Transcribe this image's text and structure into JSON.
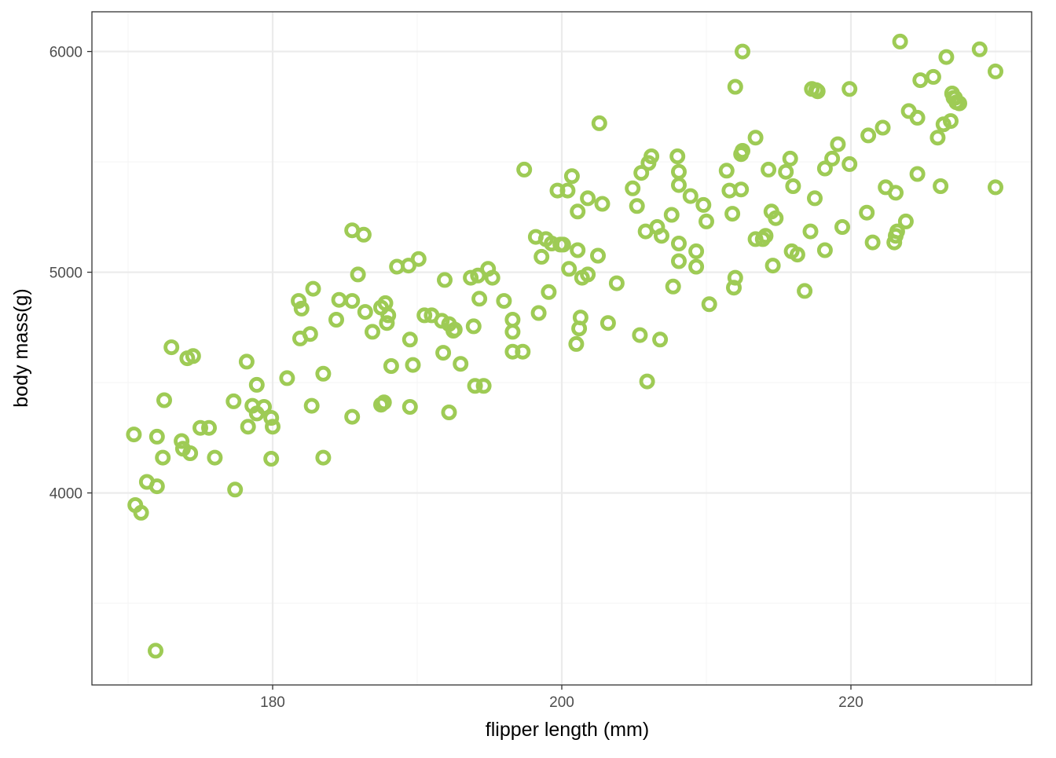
{
  "chart_data": {
    "type": "scatter",
    "title": "",
    "xlabel": "flipper length (mm)",
    "ylabel": "body mass(g)",
    "xlim": [
      167.5,
      232.5
    ],
    "ylim": [
      3130,
      6180
    ],
    "x_ticks": [
      180,
      200,
      220
    ],
    "y_ticks": [
      4000,
      5000,
      6000
    ],
    "x_minor_gridlines": [
      170,
      190,
      210,
      230
    ],
    "y_minor_gridlines": [
      3500,
      4500,
      5500
    ],
    "grid": true,
    "legend": "none",
    "point_style": "hollow-circle",
    "colors": {
      "point": "#9ECB55",
      "panel_border": "#333333",
      "grid_major": "#EBEBEB",
      "grid_minor": "#F5F5F5",
      "background": "#FFFFFF"
    },
    "series": [
      {
        "points": [
          [
            170.4,
            4265
          ],
          [
            170.5,
            3945
          ],
          [
            170.9,
            3910
          ],
          [
            171.3,
            4050
          ],
          [
            172.0,
            4030
          ],
          [
            172.0,
            4255
          ],
          [
            171.9,
            3285
          ],
          [
            172.5,
            4420
          ],
          [
            172.4,
            4160
          ],
          [
            173.0,
            4660
          ],
          [
            173.7,
            4235
          ],
          [
            173.8,
            4200
          ],
          [
            174.1,
            4610
          ],
          [
            174.5,
            4620
          ],
          [
            174.3,
            4180
          ],
          [
            175.0,
            4295
          ],
          [
            175.6,
            4295
          ],
          [
            176.0,
            4160
          ],
          [
            177.3,
            4415
          ],
          [
            177.4,
            4015
          ],
          [
            178.2,
            4595
          ],
          [
            178.3,
            4300
          ],
          [
            178.6,
            4395
          ],
          [
            178.9,
            4490
          ],
          [
            178.9,
            4360
          ],
          [
            179.4,
            4390
          ],
          [
            179.9,
            4340
          ],
          [
            180.0,
            4300
          ],
          [
            179.9,
            4155
          ],
          [
            181.0,
            4520
          ],
          [
            181.8,
            4870
          ],
          [
            181.9,
            4700
          ],
          [
            182.0,
            4835
          ],
          [
            182.6,
            4720
          ],
          [
            182.7,
            4395
          ],
          [
            182.8,
            4925
          ],
          [
            183.5,
            4540
          ],
          [
            183.5,
            4160
          ],
          [
            184.4,
            4785
          ],
          [
            184.6,
            4875
          ],
          [
            185.5,
            5190
          ],
          [
            185.5,
            4345
          ],
          [
            185.5,
            4870
          ],
          [
            185.9,
            4990
          ],
          [
            186.3,
            5170
          ],
          [
            186.4,
            4820
          ],
          [
            186.9,
            4730
          ],
          [
            187.5,
            4400
          ],
          [
            187.5,
            4840
          ],
          [
            187.7,
            4410
          ],
          [
            187.8,
            4860
          ],
          [
            187.9,
            4770
          ],
          [
            188.0,
            4805
          ],
          [
            188.2,
            4575
          ],
          [
            188.6,
            5025
          ],
          [
            189.4,
            5030
          ],
          [
            189.5,
            4695
          ],
          [
            189.5,
            4390
          ],
          [
            189.7,
            4580
          ],
          [
            190.1,
            5060
          ],
          [
            190.5,
            4805
          ],
          [
            191.0,
            4805
          ],
          [
            191.7,
            4780
          ],
          [
            191.8,
            4635
          ],
          [
            191.9,
            4965
          ],
          [
            192.2,
            4765
          ],
          [
            192.2,
            4365
          ],
          [
            192.5,
            4735
          ],
          [
            192.6,
            4740
          ],
          [
            193.0,
            4585
          ],
          [
            193.7,
            4975
          ],
          [
            193.9,
            4755
          ],
          [
            194.0,
            4485
          ],
          [
            194.2,
            4985
          ],
          [
            194.3,
            4880
          ],
          [
            194.6,
            4485
          ],
          [
            194.9,
            5015
          ],
          [
            195.2,
            4975
          ],
          [
            196.0,
            4870
          ],
          [
            196.6,
            4785
          ],
          [
            196.6,
            4730
          ],
          [
            196.6,
            4640
          ],
          [
            197.3,
            4640
          ],
          [
            197.4,
            5465
          ],
          [
            198.2,
            5160
          ],
          [
            198.4,
            4815
          ],
          [
            198.6,
            5070
          ],
          [
            198.9,
            5150
          ],
          [
            199.1,
            4910
          ],
          [
            199.3,
            5130
          ],
          [
            199.7,
            5370
          ],
          [
            199.9,
            5125
          ],
          [
            200.1,
            5125
          ],
          [
            200.4,
            5370
          ],
          [
            200.5,
            5015
          ],
          [
            200.7,
            5435
          ],
          [
            201.0,
            4675
          ],
          [
            201.1,
            5100
          ],
          [
            201.1,
            5275
          ],
          [
            201.2,
            4745
          ],
          [
            201.3,
            4795
          ],
          [
            201.4,
            4975
          ],
          [
            201.8,
            5335
          ],
          [
            201.8,
            4990
          ],
          [
            202.5,
            5075
          ],
          [
            202.6,
            5675
          ],
          [
            202.8,
            5310
          ],
          [
            203.2,
            4770
          ],
          [
            203.8,
            4950
          ],
          [
            204.9,
            5380
          ],
          [
            205.2,
            5300
          ],
          [
            205.4,
            4715
          ],
          [
            205.5,
            5450
          ],
          [
            205.8,
            5185
          ],
          [
            205.9,
            4505
          ],
          [
            206.0,
            5495
          ],
          [
            206.2,
            5525
          ],
          [
            206.6,
            5205
          ],
          [
            206.8,
            4695
          ],
          [
            206.9,
            5165
          ],
          [
            207.6,
            5260
          ],
          [
            207.7,
            4935
          ],
          [
            208.0,
            5525
          ],
          [
            208.1,
            5395
          ],
          [
            208.1,
            5455
          ],
          [
            208.1,
            5130
          ],
          [
            208.1,
            5050
          ],
          [
            208.9,
            5345
          ],
          [
            209.3,
            5095
          ],
          [
            209.3,
            5025
          ],
          [
            209.8,
            5305
          ],
          [
            210.0,
            5230
          ],
          [
            210.2,
            4855
          ],
          [
            211.4,
            5460
          ],
          [
            211.6,
            5370
          ],
          [
            211.8,
            5265
          ],
          [
            211.9,
            4930
          ],
          [
            212.0,
            4975
          ],
          [
            212.0,
            5840
          ],
          [
            212.4,
            5375
          ],
          [
            212.4,
            5535
          ],
          [
            212.5,
            5550
          ],
          [
            212.5,
            6000
          ],
          [
            213.4,
            5150
          ],
          [
            213.4,
            5610
          ],
          [
            213.9,
            5150
          ],
          [
            214.1,
            5165
          ],
          [
            214.3,
            5465
          ],
          [
            214.5,
            5275
          ],
          [
            214.6,
            5030
          ],
          [
            214.8,
            5245
          ],
          [
            215.5,
            5455
          ],
          [
            215.8,
            5515
          ],
          [
            215.9,
            5095
          ],
          [
            216.0,
            5390
          ],
          [
            216.3,
            5080
          ],
          [
            216.8,
            4915
          ],
          [
            217.2,
            5185
          ],
          [
            217.3,
            5830
          ],
          [
            217.6,
            5825
          ],
          [
            217.7,
            5820
          ],
          [
            217.5,
            5335
          ],
          [
            218.2,
            5470
          ],
          [
            218.2,
            5100
          ],
          [
            218.7,
            5515
          ],
          [
            219.1,
            5580
          ],
          [
            219.4,
            5205
          ],
          [
            219.9,
            5490
          ],
          [
            219.9,
            5830
          ],
          [
            221.1,
            5270
          ],
          [
            221.2,
            5620
          ],
          [
            221.5,
            5135
          ],
          [
            222.2,
            5655
          ],
          [
            222.4,
            5385
          ],
          [
            223.0,
            5135
          ],
          [
            223.1,
            5165
          ],
          [
            223.1,
            5360
          ],
          [
            223.2,
            5185
          ],
          [
            223.4,
            6045
          ],
          [
            223.8,
            5230
          ],
          [
            224.0,
            5730
          ],
          [
            224.6,
            5700
          ],
          [
            224.6,
            5445
          ],
          [
            224.8,
            5870
          ],
          [
            225.7,
            5885
          ],
          [
            226.0,
            5610
          ],
          [
            226.2,
            5390
          ],
          [
            226.4,
            5670
          ],
          [
            226.6,
            5975
          ],
          [
            226.9,
            5685
          ],
          [
            227.0,
            5810
          ],
          [
            227.1,
            5790
          ],
          [
            227.2,
            5790
          ],
          [
            227.3,
            5770
          ],
          [
            227.5,
            5765
          ],
          [
            228.9,
            6010
          ],
          [
            230.0,
            5385
          ],
          [
            230.0,
            5910
          ]
        ]
      }
    ]
  }
}
